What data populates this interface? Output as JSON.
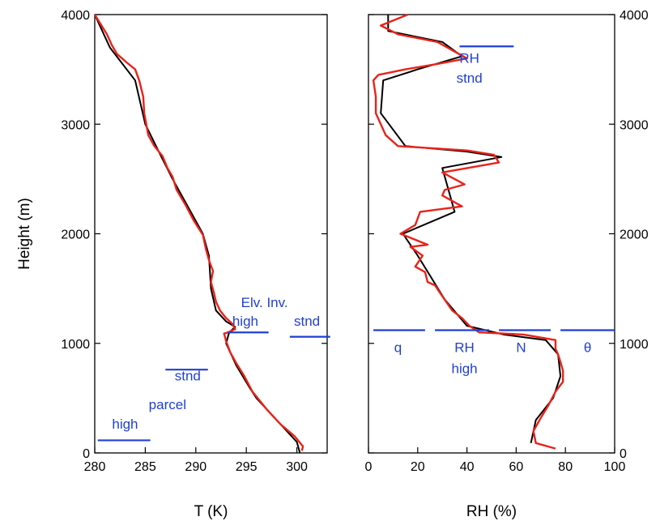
{
  "chart_data": [
    {
      "type": "line",
      "xlabel": "T (K)",
      "ylabel": "Height (m)",
      "xlim": [
        280,
        303
      ],
      "ylim": [
        0,
        4000
      ],
      "xticks": [
        "280",
        "285",
        "290",
        "295",
        "300"
      ],
      "yticks": [
        "0",
        "1000",
        "2000",
        "3000",
        "4000"
      ],
      "colors": {
        "black_series": "#000000",
        "red_series": "#e8231a",
        "annotation": "#1f3fd6"
      },
      "series": [
        {
          "color": "#000000",
          "points": [
            [
              300.3,
              0
            ],
            [
              300,
              100
            ],
            [
              298,
              300
            ],
            [
              296,
              500
            ],
            [
              295.3,
              600
            ],
            [
              294,
              800
            ],
            [
              293,
              1000
            ],
            [
              293.3,
              1100
            ],
            [
              293.9,
              1150
            ],
            [
              293,
              1200
            ],
            [
              292,
              1300
            ],
            [
              291.5,
              1500
            ],
            [
              291.3,
              1800
            ],
            [
              290.7,
              2000
            ],
            [
              289.5,
              2200
            ],
            [
              287.7,
              2500
            ],
            [
              286.6,
              2700
            ],
            [
              285,
              3000
            ],
            [
              284,
              3400
            ],
            [
              281.5,
              3700
            ],
            [
              280,
              4000
            ]
          ]
        },
        {
          "color": "#e8231a",
          "points": [
            [
              300.5,
              20
            ],
            [
              300.6,
              60
            ],
            [
              299.8,
              150
            ],
            [
              298.4,
              260
            ],
            [
              297,
              400
            ],
            [
              295.6,
              560
            ],
            [
              294.8,
              700
            ],
            [
              294,
              820
            ],
            [
              293.4,
              920
            ],
            [
              293,
              1020
            ],
            [
              292.8,
              1090
            ],
            [
              293.2,
              1100
            ],
            [
              293.9,
              1130
            ],
            [
              293.6,
              1180
            ],
            [
              293,
              1230
            ],
            [
              292.4,
              1300
            ],
            [
              292,
              1380
            ],
            [
              291.8,
              1460
            ],
            [
              291.5,
              1560
            ],
            [
              291.7,
              1660
            ],
            [
              291.3,
              1760
            ],
            [
              291,
              1860
            ],
            [
              290.7,
              1990
            ],
            [
              289.8,
              2120
            ],
            [
              289,
              2260
            ],
            [
              288.1,
              2400
            ],
            [
              287.7,
              2520
            ],
            [
              287.2,
              2600
            ],
            [
              286.7,
              2710
            ],
            [
              285.9,
              2800
            ],
            [
              285.3,
              2900
            ],
            [
              284.9,
              3100
            ],
            [
              284.8,
              3250
            ],
            [
              284.4,
              3400
            ],
            [
              284,
              3500
            ],
            [
              283.2,
              3560
            ],
            [
              282.2,
              3640
            ],
            [
              281.7,
              3720
            ],
            [
              281.2,
              3820
            ],
            [
              280,
              4000
            ]
          ]
        }
      ],
      "annotations": [
        {
          "label": "high",
          "x": 283,
          "y": 220,
          "line": [
            280.3,
            285.5,
            115
          ]
        },
        {
          "label": "parcel",
          "x": 287.2,
          "y": 400
        },
        {
          "label": "stnd",
          "x": 289.2,
          "y": 660,
          "line": [
            287,
            291.2,
            760
          ]
        },
        {
          "label": "Elv. Inv.",
          "x": 296.8,
          "y": 1330
        },
        {
          "label": "high",
          "x": 294.9,
          "y": 1160,
          "line": [
            293.2,
            297.2,
            1100
          ]
        },
        {
          "label": "stnd",
          "x": 301,
          "y": 1160,
          "line": [
            299.3,
            303.3,
            1060
          ]
        }
      ]
    },
    {
      "type": "line",
      "xlabel": "RH (%)",
      "ylabel": "",
      "xlim": [
        0,
        100
      ],
      "ylim": [
        0,
        4000
      ],
      "xticks": [
        "0",
        "20",
        "40",
        "60",
        "80",
        "100"
      ],
      "yticks": [
        "0",
        "1000",
        "2000",
        "3000",
        "4000"
      ],
      "series": [
        {
          "color": "#000000",
          "points": [
            [
              66,
              90
            ],
            [
              68,
              300
            ],
            [
              75,
              500
            ],
            [
              78,
              700
            ],
            [
              77,
              900
            ],
            [
              72,
              1030
            ],
            [
              55,
              1080
            ],
            [
              40,
              1160
            ],
            [
              31,
              1400
            ],
            [
              20,
              1800
            ],
            [
              14,
              2000
            ],
            [
              35,
              2200
            ],
            [
              30,
              2600
            ],
            [
              54,
              2700
            ],
            [
              40,
              2750
            ],
            [
              15,
              2800
            ],
            [
              5,
              3100
            ],
            [
              6,
              3400
            ],
            [
              20,
              3500
            ],
            [
              38,
              3620
            ],
            [
              30,
              3750
            ],
            [
              8,
              3850
            ],
            [
              8,
              4000
            ]
          ]
        },
        {
          "color": "#e8231a",
          "points": [
            [
              76,
              40
            ],
            [
              68,
              90
            ],
            [
              67,
              200
            ],
            [
              70,
              320
            ],
            [
              73,
              430
            ],
            [
              76,
              560
            ],
            [
              79,
              650
            ],
            [
              79,
              750
            ],
            [
              78,
              830
            ],
            [
              77,
              900
            ],
            [
              76,
              950
            ],
            [
              76,
              1030
            ],
            [
              63,
              1080
            ],
            [
              45,
              1100
            ],
            [
              41,
              1160
            ],
            [
              38,
              1230
            ],
            [
              34,
              1300
            ],
            [
              30,
              1430
            ],
            [
              27,
              1530
            ],
            [
              24,
              1560
            ],
            [
              23,
              1650
            ],
            [
              19,
              1700
            ],
            [
              22,
              1800
            ],
            [
              17,
              1880
            ],
            [
              24,
              1900
            ],
            [
              13,
              2000
            ],
            [
              19,
              2080
            ],
            [
              21,
              2200
            ],
            [
              38,
              2250
            ],
            [
              30,
              2350
            ],
            [
              31,
              2400
            ],
            [
              39,
              2450
            ],
            [
              35,
              2500
            ],
            [
              30,
              2560
            ],
            [
              53,
              2650
            ],
            [
              51,
              2720
            ],
            [
              40,
              2760
            ],
            [
              12,
              2800
            ],
            [
              7,
              2900
            ],
            [
              3,
              3100
            ],
            [
              3,
              3250
            ],
            [
              2,
              3400
            ],
            [
              4,
              3450
            ],
            [
              15,
              3500
            ],
            [
              28,
              3550
            ],
            [
              40,
              3600
            ],
            [
              28,
              3750
            ],
            [
              12,
              3820
            ],
            [
              5,
              3900
            ],
            [
              16,
              4000
            ]
          ]
        }
      ],
      "annotations": [
        {
          "label": "RH",
          "x": 41,
          "y": 3560,
          "line": [
            37,
            59,
            3710
          ]
        },
        {
          "label": "stnd",
          "x": 41,
          "y": 3380
        },
        {
          "label": "q",
          "x": 12,
          "y": 920,
          "line": [
            2,
            23,
            1120
          ]
        },
        {
          "label": "RH",
          "x": 39,
          "y": 920,
          "line": [
            27,
            49,
            1120
          ]
        },
        {
          "label": "high",
          "x": 39,
          "y": 730
        },
        {
          "label": "N",
          "x": 62,
          "y": 920,
          "line": [
            53,
            74,
            1120
          ]
        },
        {
          "label": "θ",
          "x": 89,
          "y": 920,
          "line": [
            78,
            100,
            1120
          ]
        }
      ]
    }
  ]
}
